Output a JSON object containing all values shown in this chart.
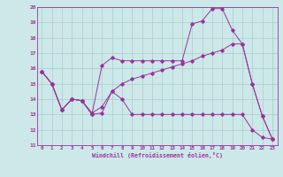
{
  "xlabel": "Windchill (Refroidissement éolien,°C)",
  "bg_color": "#cce8e8",
  "line_color": "#993399",
  "grid_color": "#aacccc",
  "xlim": [
    -0.5,
    23.5
  ],
  "ylim": [
    11,
    20
  ],
  "xticks": [
    0,
    1,
    2,
    3,
    4,
    5,
    6,
    7,
    8,
    9,
    10,
    11,
    12,
    13,
    14,
    15,
    16,
    17,
    18,
    19,
    20,
    21,
    22,
    23
  ],
  "yticks": [
    11,
    12,
    13,
    14,
    15,
    16,
    17,
    18,
    19,
    20
  ],
  "line1_x": [
    0,
    1,
    2,
    3,
    4,
    5,
    6,
    7,
    8,
    9,
    10,
    11,
    12,
    13,
    14,
    15,
    16,
    17,
    18,
    19,
    20,
    21,
    22,
    23
  ],
  "line1_y": [
    15.8,
    15.0,
    13.3,
    14.0,
    13.9,
    13.0,
    13.1,
    14.5,
    14.0,
    13.0,
    13.0,
    13.0,
    13.0,
    13.0,
    13.0,
    13.0,
    13.0,
    13.0,
    13.0,
    13.0,
    13.0,
    12.0,
    11.5,
    11.4
  ],
  "line2_x": [
    0,
    1,
    2,
    3,
    4,
    5,
    6,
    7,
    8,
    9,
    10,
    11,
    12,
    13,
    14,
    15,
    16,
    17,
    18,
    19,
    20,
    21,
    22,
    23
  ],
  "line2_y": [
    15.8,
    15.0,
    13.3,
    14.0,
    13.9,
    13.0,
    16.2,
    16.7,
    16.5,
    16.5,
    16.5,
    16.5,
    16.5,
    16.5,
    16.5,
    18.9,
    19.1,
    19.9,
    19.9,
    18.5,
    17.6,
    15.0,
    12.9,
    11.4
  ],
  "line3_x": [
    0,
    1,
    2,
    3,
    4,
    5,
    6,
    7,
    8,
    9,
    10,
    11,
    12,
    13,
    14,
    15,
    16,
    17,
    18,
    19,
    20,
    21,
    22,
    23
  ],
  "line3_y": [
    15.8,
    15.0,
    13.3,
    14.0,
    13.9,
    13.1,
    13.5,
    14.5,
    15.0,
    15.3,
    15.5,
    15.7,
    15.9,
    16.1,
    16.3,
    16.5,
    16.8,
    17.0,
    17.2,
    17.6,
    17.6,
    15.0,
    12.9,
    11.4
  ]
}
